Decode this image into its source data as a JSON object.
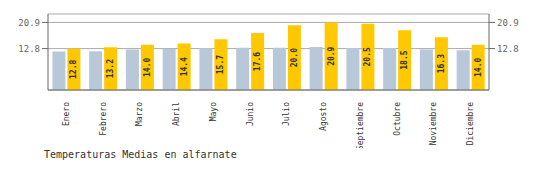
{
  "chart_data": {
    "type": "bar",
    "title": "Temperaturas Medias en alfarnate",
    "categories": [
      "Enero",
      "Febrero",
      "Marzo",
      "Abril",
      "Mayo",
      "Junio",
      "Julio",
      "Agosto",
      "Septiembre",
      "Octubre",
      "Noviembre",
      "Diciembre"
    ],
    "series": [
      {
        "color": "#B8C8D8",
        "values": [
          11.9,
          12.0,
          12.5,
          12.7,
          12.9,
          13.1,
          13.1,
          13.3,
          13.0,
          13.0,
          12.5,
          12.3
        ]
      },
      {
        "color": "#FFC800",
        "values": [
          12.8,
          13.2,
          14.0,
          14.4,
          15.7,
          17.6,
          20.0,
          20.9,
          20.5,
          18.5,
          16.3,
          14.0
        ],
        "data_labels": true,
        "value_labels": [
          "12.8",
          "13.2",
          "14.0",
          "14.4",
          "15.7",
          "17.6",
          "20.0",
          "20.9",
          "20.5",
          "18.5",
          "16.3",
          "14.0"
        ]
      }
    ],
    "ylim": [
      0,
      23.5
    ],
    "yticks": [
      12.8,
      20.9
    ],
    "y2lim": [
      0,
      23.5
    ],
    "y2ticks": [
      12.8,
      20.9
    ],
    "grid": true
  }
}
